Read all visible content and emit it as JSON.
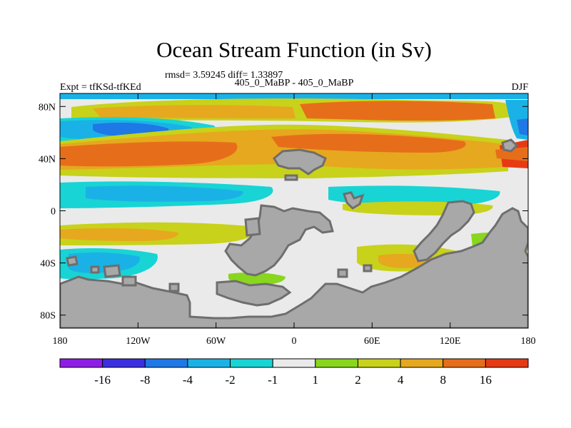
{
  "chart_data": {
    "type": "heatmap",
    "title": "Ocean Stream Function (in Sv)",
    "stats_text": "rmsd= 3.59245 diff= 1.33897",
    "left_label": "Expt = tfKSd-tfKEd",
    "center_label": "405_0_MaBP - 405_0_MaBP",
    "right_label": "DJF",
    "xlim": [
      -180,
      180
    ],
    "ylim": [
      -90,
      90
    ],
    "x_ticks": [
      {
        "value": -180,
        "label": "180"
      },
      {
        "value": -120,
        "label": "120W"
      },
      {
        "value": -60,
        "label": "60W"
      },
      {
        "value": 0,
        "label": "0"
      },
      {
        "value": 60,
        "label": "60E"
      },
      {
        "value": 120,
        "label": "120E"
      },
      {
        "value": 180,
        "label": "180"
      }
    ],
    "y_ticks": [
      {
        "value": 80,
        "label": "80N"
      },
      {
        "value": 40,
        "label": "40N"
      },
      {
        "value": 0,
        "label": "0"
      },
      {
        "value": -40,
        "label": "40S"
      },
      {
        "value": -80,
        "label": "80S"
      }
    ],
    "colorbar": {
      "labels": [
        "-16",
        "-8",
        "-4",
        "-2",
        "-1",
        "1",
        "2",
        "4",
        "8",
        "16"
      ],
      "colors": [
        "#8e1ee6",
        "#3a30e0",
        "#1e78e6",
        "#1ab2e6",
        "#18d4d4",
        "#eaeaea",
        "#88d61e",
        "#c8d21a",
        "#e6a81e",
        "#e66e1a",
        "#e63a14"
      ]
    },
    "land_color": "#a8a8a8",
    "land_outline_color": "#6e6e6e"
  }
}
